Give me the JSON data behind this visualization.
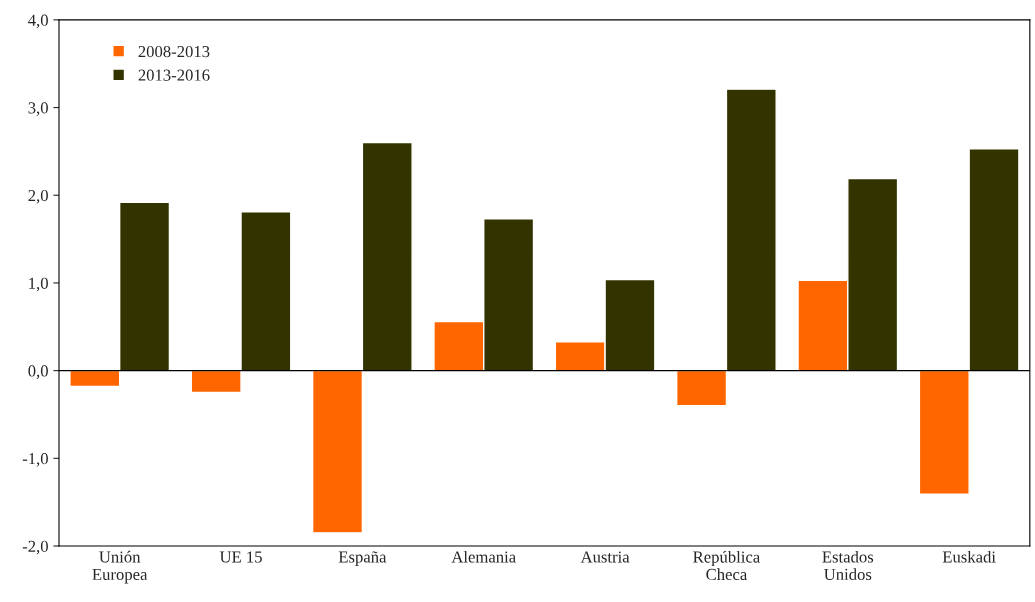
{
  "chart_data": {
    "type": "bar",
    "categories": [
      "Unión\nEuropea",
      "UE 15",
      "España",
      "Alemania",
      "Austria",
      "República\nCheca",
      "Estados\nUnidos",
      "Euskadi"
    ],
    "series": [
      {
        "name": "2008-2013",
        "color": "#ff6600",
        "values": [
          -0.18,
          -0.25,
          -1.85,
          0.56,
          0.33,
          -0.4,
          1.03,
          -1.41
        ]
      },
      {
        "name": "2013-2016",
        "color": "#333300",
        "values": [
          1.92,
          1.81,
          2.6,
          1.73,
          1.04,
          3.21,
          2.19,
          2.53
        ]
      }
    ],
    "ylim": [
      -2.0,
      4.0
    ],
    "yticks": [
      {
        "value": -2.0,
        "label": "-2,0"
      },
      {
        "value": -1.0,
        "label": "-1,0"
      },
      {
        "value": 0.0,
        "label": "0,0"
      },
      {
        "value": 1.0,
        "label": "1,0"
      },
      {
        "value": 2.0,
        "label": "2,0"
      },
      {
        "value": 3.0,
        "label": "3,0"
      },
      {
        "value": 4.0,
        "label": "4,0"
      }
    ],
    "ref_lines": [
      {
        "axis": "y",
        "value": 0.0,
        "color": "#000000"
      }
    ],
    "legend": "top left"
  }
}
